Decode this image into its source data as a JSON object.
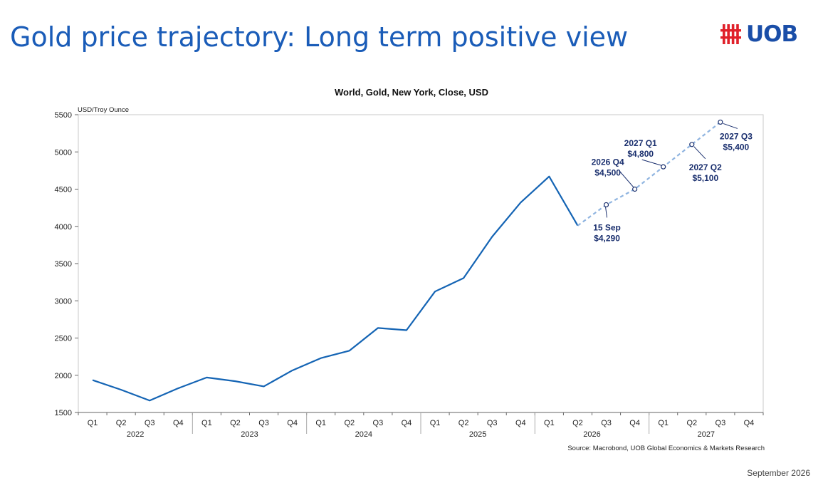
{
  "slide": {
    "title": "Gold price trajectory: Long term positive view",
    "logo_text": "UOB",
    "date": "September 2026"
  },
  "colors": {
    "title": "#1a5cb8",
    "actual": "#1464b4",
    "forecast": "#8fb4e0",
    "label": "#1a2f6e"
  },
  "chart_data": {
    "type": "line",
    "title": "World, Gold, New York, Close, USD",
    "ylabel": "USD/Troy Ounce",
    "source": "Source: Macrobond, UOB Global Economics & Markets Research",
    "ylim": [
      1500,
      5500
    ],
    "yticks": [
      1500,
      2000,
      2500,
      3000,
      3500,
      4000,
      4500,
      5000,
      5500
    ],
    "quarters": [
      "Q1",
      "Q2",
      "Q3",
      "Q4",
      "Q1",
      "Q2",
      "Q3",
      "Q4",
      "Q1",
      "Q2",
      "Q3",
      "Q4",
      "Q1",
      "Q2",
      "Q3",
      "Q4",
      "Q1",
      "Q2",
      "Q3",
      "Q4",
      "Q1",
      "Q2",
      "Q3",
      "Q4"
    ],
    "years": [
      "2022",
      "2023",
      "2024",
      "2025",
      "2026",
      "2027"
    ],
    "series": [
      {
        "kind": "actual",
        "points": [
          [
            0,
            1935
          ],
          [
            1,
            1805
          ],
          [
            2,
            1660
          ],
          [
            3,
            1825
          ],
          [
            4,
            1970
          ],
          [
            5,
            1920
          ],
          [
            6,
            1850
          ],
          [
            7,
            2065
          ],
          [
            8,
            2230
          ],
          [
            9,
            2330
          ],
          [
            10,
            2635
          ],
          [
            11,
            2605
          ],
          [
            12,
            3125
          ],
          [
            13,
            3305
          ],
          [
            14,
            3860
          ],
          [
            15,
            4320
          ],
          [
            16,
            4670
          ],
          [
            17,
            4010
          ]
        ]
      },
      {
        "kind": "forecast",
        "points": [
          [
            17,
            4010
          ],
          [
            18,
            4290
          ],
          [
            19,
            4500
          ],
          [
            20,
            4800
          ],
          [
            21,
            5100
          ],
          [
            22,
            5400
          ]
        ]
      }
    ],
    "annotations": [
      {
        "index": 18,
        "value": 4290,
        "line1": "15 Sep",
        "line2": "$4,290"
      },
      {
        "index": 19,
        "value": 4500,
        "line1": "2026 Q4",
        "line2": "$4,500"
      },
      {
        "index": 20,
        "value": 4800,
        "line1": "2027 Q1",
        "line2": "$4,800"
      },
      {
        "index": 21,
        "value": 5100,
        "line1": "2027 Q2",
        "line2": "$5,100"
      },
      {
        "index": 22,
        "value": 5400,
        "line1": "2027 Q3",
        "line2": "$5,400"
      }
    ]
  }
}
